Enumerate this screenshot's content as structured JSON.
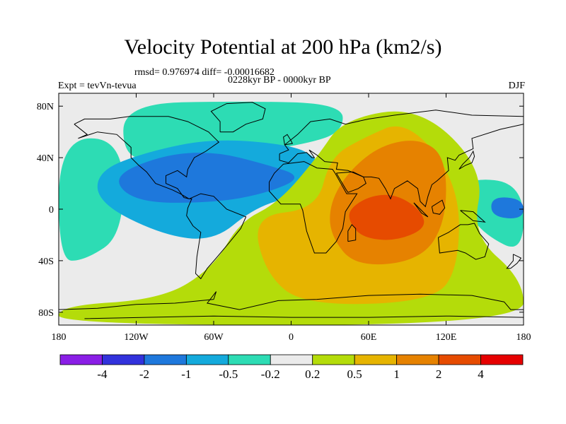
{
  "title": "Velocity Potential at 200 hPa (km2/s)",
  "stats_text": "rmsd= 0.976974 diff= -0.00016682",
  "period_text": "0228kyr BP - 0000kyr BP",
  "left_label": "Expt = tevVn-tevua",
  "right_label": "DJF",
  "chart_data": {
    "type": "heatmap",
    "projection": "cylindrical-equidistant",
    "variable": "Velocity Potential at 200 hPa",
    "units": "km2/s",
    "xlim": [
      -180,
      180
    ],
    "ylim": [
      -90,
      90
    ],
    "x_ticks": [
      {
        "value": -180,
        "label": "180"
      },
      {
        "value": -120,
        "label": "120W"
      },
      {
        "value": -60,
        "label": "60W"
      },
      {
        "value": 0,
        "label": "0"
      },
      {
        "value": 60,
        "label": "60E"
      },
      {
        "value": 120,
        "label": "120E"
      },
      {
        "value": 180,
        "label": "180"
      }
    ],
    "y_ticks": [
      {
        "value": 80,
        "label": "80N"
      },
      {
        "value": 40,
        "label": "40N"
      },
      {
        "value": 0,
        "label": "0"
      },
      {
        "value": -40,
        "label": "40S"
      },
      {
        "value": -80,
        "label": "80S"
      }
    ],
    "colorbar": {
      "levels": [
        "-4",
        "-2",
        "-1",
        "-0.5",
        "-0.2",
        "0.2",
        "0.5",
        "1",
        "2",
        "4"
      ],
      "colors": [
        "#8a1ee6",
        "#3232dc",
        "#1e78dc",
        "#14aadc",
        "#2ddcb4",
        "#ebebeb",
        "#b4dc0a",
        "#e6b400",
        "#e68200",
        "#e64b00",
        "#e60000"
      ]
    },
    "regions": [
      {
        "name": "north-atlantic-polar",
        "level": "-0.5 to -0.2",
        "polygon": [
          [
            -130,
            82
          ],
          [
            -40,
            84
          ],
          [
            40,
            82
          ],
          [
            40,
            60
          ],
          [
            10,
            50
          ],
          [
            -60,
            40
          ],
          [
            -100,
            38
          ],
          [
            -130,
            40
          ]
        ]
      },
      {
        "name": "west-pacific-pole",
        "level": "-0.5 to -0.2",
        "polygon": [
          [
            -180,
            55
          ],
          [
            -130,
            55
          ],
          [
            -130,
            -20
          ],
          [
            -160,
            -40
          ],
          [
            -180,
            -40
          ]
        ]
      },
      {
        "name": "atlantic-americas-low",
        "level": "-1 to -0.5",
        "polygon": [
          [
            -150,
            30
          ],
          [
            -110,
            45
          ],
          [
            -60,
            55
          ],
          [
            0,
            50
          ],
          [
            20,
            40
          ],
          [
            30,
            20
          ],
          [
            0,
            10
          ],
          [
            -30,
            0
          ],
          [
            -60,
            -25
          ],
          [
            -100,
            -20
          ],
          [
            -150,
            5
          ]
        ]
      },
      {
        "name": "americas-core",
        "level": "-2 to -1",
        "polygon": [
          [
            -140,
            25
          ],
          [
            -100,
            42
          ],
          [
            -60,
            45
          ],
          [
            -20,
            35
          ],
          [
            10,
            25
          ],
          [
            -20,
            12
          ],
          [
            -60,
            5
          ],
          [
            -120,
            5
          ]
        ]
      },
      {
        "name": "east-pacific-low",
        "level": "-0.5 to -0.2",
        "polygon": [
          [
            135,
            25
          ],
          [
            180,
            20
          ],
          [
            180,
            -35
          ],
          [
            150,
            -20
          ],
          [
            135,
            0
          ]
        ]
      },
      {
        "name": "east-pacific-core",
        "level": "-2 to -1",
        "polygon": [
          [
            155,
            10
          ],
          [
            180,
            8
          ],
          [
            180,
            -8
          ],
          [
            155,
            -6
          ]
        ]
      },
      {
        "name": "southern-positive",
        "level": "0.2 to 0.5",
        "polygon": [
          [
            -40,
            -10
          ],
          [
            -60,
            -45
          ],
          [
            -100,
            -70
          ],
          [
            -180,
            -75
          ],
          [
            -180,
            -90
          ],
          [
            180,
            -90
          ],
          [
            180,
            -55
          ],
          [
            140,
            -20
          ],
          [
            150,
            30
          ],
          [
            100,
            80
          ],
          [
            40,
            70
          ],
          [
            20,
            40
          ],
          [
            -10,
            5
          ]
        ]
      },
      {
        "name": "africa-indian-high",
        "level": "0.5 to 1",
        "polygon": [
          [
            -30,
            -5
          ],
          [
            -20,
            -50
          ],
          [
            10,
            -75
          ],
          [
            110,
            -72
          ],
          [
            130,
            -45
          ],
          [
            130,
            20
          ],
          [
            90,
            70
          ],
          [
            55,
            55
          ],
          [
            30,
            40
          ],
          [
            20,
            0
          ]
        ]
      },
      {
        "name": "indian-ocean-high",
        "level": "1 to 2",
        "polygon": [
          [
            30,
            5
          ],
          [
            45,
            30
          ],
          [
            70,
            50
          ],
          [
            100,
            55
          ],
          [
            120,
            40
          ],
          [
            120,
            -10
          ],
          [
            100,
            -40
          ],
          [
            50,
            -45
          ],
          [
            30,
            -20
          ]
        ]
      },
      {
        "name": "indian-ocean-core",
        "level": "2 to 4",
        "polygon": [
          [
            45,
            0
          ],
          [
            60,
            10
          ],
          [
            80,
            12
          ],
          [
            100,
            0
          ],
          [
            105,
            -15
          ],
          [
            80,
            -25
          ],
          [
            55,
            -22
          ],
          [
            45,
            -10
          ]
        ]
      }
    ]
  }
}
